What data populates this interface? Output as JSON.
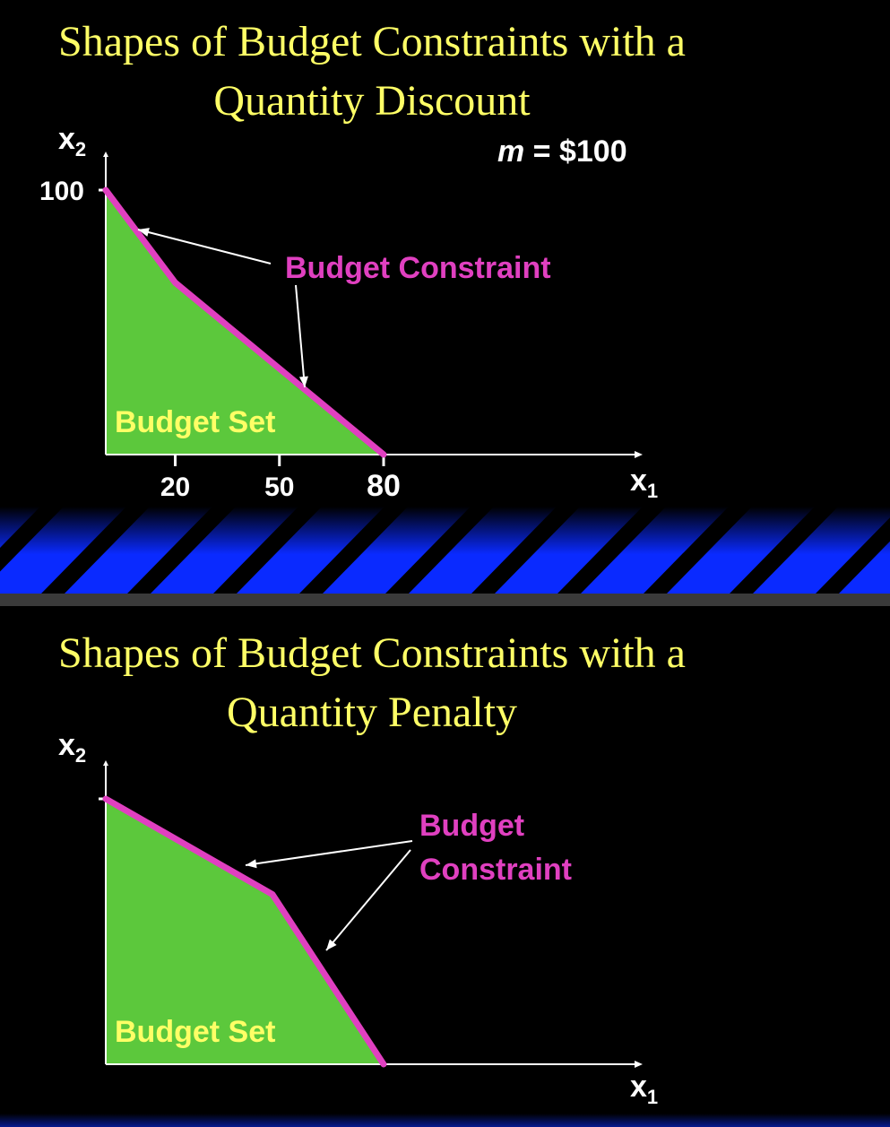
{
  "slides": [
    {
      "title_line1": "Shapes of Budget Constraints with a",
      "title_line2": "Quantity Discount",
      "income_label": "m = $100",
      "income_var": "m",
      "income_rest": " = $100"
    },
    {
      "title_line1": "Shapes of Budget Constraints with a",
      "title_line2": "Quantity Penalty"
    }
  ],
  "colors": {
    "title": "#ffff66",
    "budget_set_fill": "#5cc83c",
    "constraint": "#e040c0",
    "axis": "#ffffff",
    "stripe": "#0a2aff"
  },
  "chart_data": [
    {
      "type": "area",
      "ylabel": "x2",
      "xlabel": "x1",
      "xlim": [
        0,
        80
      ],
      "ylim": [
        0,
        100
      ],
      "y_ticks": [
        100
      ],
      "y_tick_labels": [
        "100"
      ],
      "x_ticks": [
        20,
        50,
        80
      ],
      "x_tick_labels": [
        "20",
        "50",
        "80"
      ],
      "constraint_points": [
        [
          0,
          100
        ],
        [
          20,
          65
        ],
        [
          80,
          0
        ]
      ],
      "region_label": "Budget Set",
      "constraint_label": "Budget Constraint",
      "annotation": "m = $100"
    },
    {
      "type": "area",
      "ylabel": "x2",
      "xlabel": "x1",
      "xlim": [
        0,
        80
      ],
      "ylim": [
        0,
        100
      ],
      "constraint_points": [
        [
          0,
          100
        ],
        [
          48,
          64
        ],
        [
          80,
          0
        ]
      ],
      "region_label": "Budget Set",
      "constraint_label_line1": "Budget",
      "constraint_label_line2": "Constraint"
    }
  ]
}
